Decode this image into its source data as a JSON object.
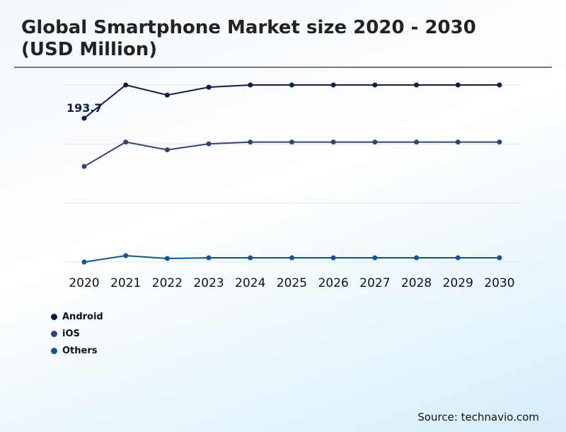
{
  "chart_data": {
    "type": "line",
    "title": "Global Smartphone Market size 2020 - 2030 (USD Million)",
    "categories": [
      "2020",
      "2021",
      "2022",
      "2023",
      "2024",
      "2025",
      "2026",
      "2027",
      "2028",
      "2029",
      "2030"
    ],
    "series": [
      {
        "name": "Android",
        "color": "#0b1f4a",
        "values": [
          193.7,
          238.6,
          225,
          235.6,
          238.6,
          238.6,
          238.6,
          238.6,
          238.6,
          238.6,
          238.6
        ]
      },
      {
        "name": "iOS",
        "color": "#2e4478",
        "values": [
          128.8,
          161.7,
          151.2,
          159.3,
          161.7,
          161.7,
          161.7,
          161.7,
          161.7,
          161.7,
          161.7
        ]
      },
      {
        "name": "Others",
        "color": "#0a55a0",
        "values": [
          0,
          8.6,
          4.8,
          5.7,
          5.7,
          5.7,
          5.7,
          5.7,
          5.7,
          5.7,
          5.7
        ]
      }
    ],
    "data_labels": [
      {
        "series": "Android",
        "category": "2020",
        "text": "193.7"
      }
    ],
    "ylim": [
      0,
      238.6
    ],
    "grid": true,
    "legend": "bottom-left",
    "y_tick_labels_shown": false
  },
  "source": "Source: technavio.com"
}
